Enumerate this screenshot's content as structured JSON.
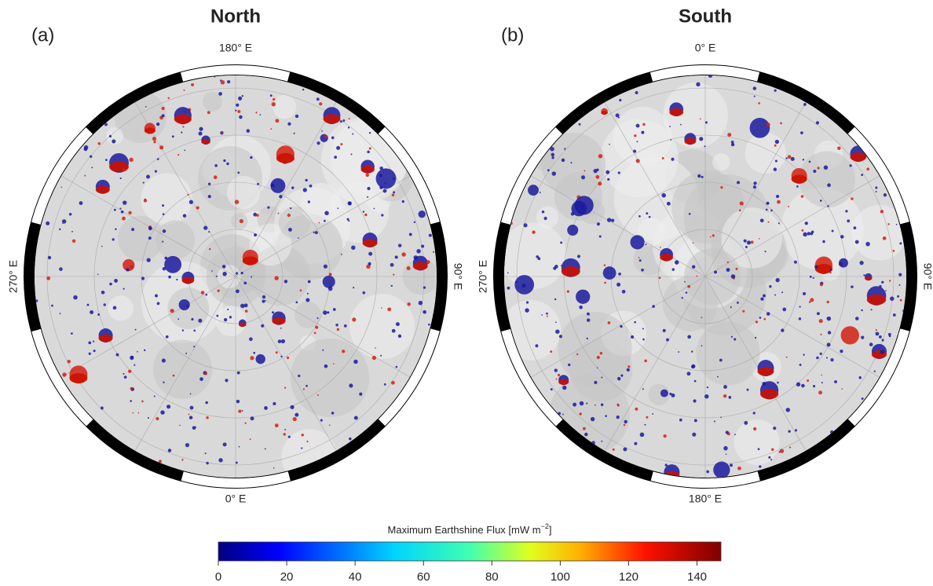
{
  "panels": [
    {
      "label": "(a)",
      "title": "North",
      "top": "180° E",
      "bottom": "0° E",
      "left": "270° E",
      "right": "90° E"
    },
    {
      "label": "(b)",
      "title": "South",
      "top": "0° E",
      "bottom": "180° E",
      "left": "270° E",
      "right": "90° E"
    }
  ],
  "colorbar": {
    "label": "Maximum Earthshine Flux [mW m",
    "label_exponent": "−2",
    "label_end": "]",
    "range": [
      0,
      147
    ],
    "ticks": [
      0,
      20,
      40,
      60,
      80,
      100,
      120,
      140
    ]
  }
}
